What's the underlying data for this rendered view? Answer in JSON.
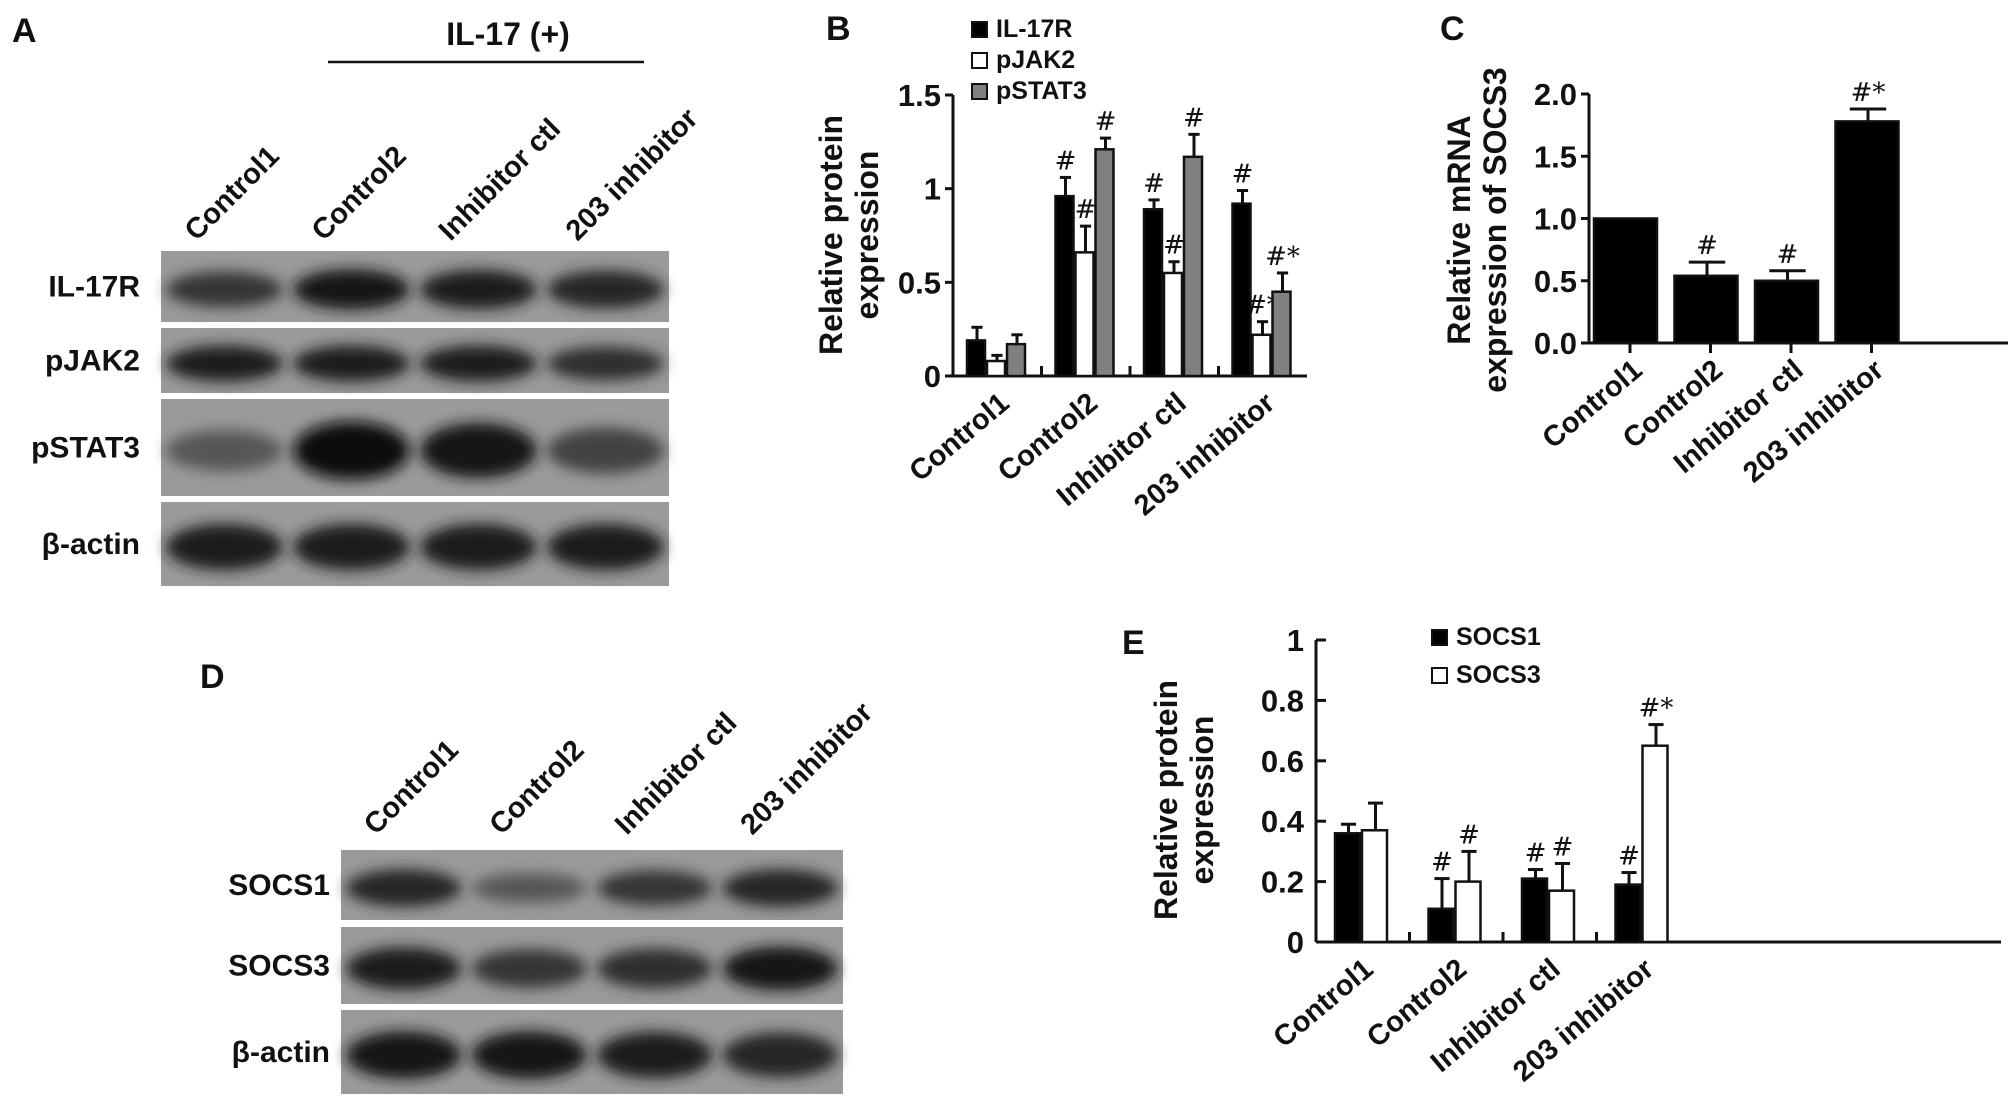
{
  "panels": {
    "a": "A",
    "b": "B",
    "c": "C",
    "d": "D",
    "e": "E"
  },
  "blot_a": {
    "treatment_label": "IL-17 (+)",
    "lanes": [
      "Control1",
      "Control2",
      "Inhibitor ctl",
      "203 inhibitor"
    ],
    "rows": [
      "IL-17R",
      "pJAK2",
      "pSTAT3",
      "β-actin"
    ]
  },
  "blot_d": {
    "lanes": [
      "Control1",
      "Control2",
      "Inhibitor ctl",
      "203 inhibitor"
    ],
    "rows": [
      "SOCS1",
      "SOCS3",
      "β-actin"
    ]
  },
  "chart_data": [
    {
      "id": "B",
      "type": "bar",
      "ylabel": [
        "Relative protein",
        "expression"
      ],
      "categories": [
        "Control1",
        "Control2",
        "Inhibitor ctl",
        "203 inhibitor"
      ],
      "ylim": [
        0,
        1.5
      ],
      "yticks": [
        "0",
        "0.5",
        "1",
        "1.5"
      ],
      "ytick_values": [
        0,
        0.5,
        1,
        1.5
      ],
      "legend_position": "top-left",
      "series": [
        {
          "name": "IL-17R",
          "color": "#000000",
          "values": [
            0.19,
            0.96,
            0.89,
            0.92
          ],
          "error_top": [
            0.26,
            1.06,
            0.94,
            0.99
          ],
          "annotations": [
            "",
            "#",
            "#",
            "#"
          ]
        },
        {
          "name": "pJAK2",
          "color": "#ffffff",
          "values": [
            0.08,
            0.66,
            0.55,
            0.22
          ],
          "error_top": [
            0.11,
            0.8,
            0.61,
            0.29
          ],
          "annotations": [
            "",
            "#",
            "#",
            "#*"
          ]
        },
        {
          "name": "pSTAT3",
          "color": "#808080",
          "values": [
            0.17,
            1.21,
            1.17,
            0.45
          ],
          "error_top": [
            0.22,
            1.27,
            1.29,
            0.55
          ],
          "annotations": [
            "",
            "#",
            "#",
            "#*"
          ]
        }
      ]
    },
    {
      "id": "C",
      "type": "bar",
      "ylabel": [
        "Relative mRNA",
        "expression of SOCS3"
      ],
      "categories": [
        "Control1",
        "Control2",
        "Inhibitor ctl",
        "203 inhibitor"
      ],
      "ylim": [
        0,
        2.0
      ],
      "yticks": [
        "0.0",
        "0.5",
        "1.0",
        "1.5",
        "2.0"
      ],
      "ytick_values": [
        0,
        0.5,
        1,
        1.5,
        2
      ],
      "series": [
        {
          "color": "#000000",
          "values": [
            1.0,
            0.54,
            0.5,
            1.78
          ],
          "error_top": [
            1.0,
            0.65,
            0.58,
            1.88
          ],
          "annotations": [
            "",
            "#",
            "#",
            "#*"
          ]
        }
      ]
    },
    {
      "id": "E",
      "type": "bar",
      "ylabel": [
        "Relative protein",
        "expression"
      ],
      "categories": [
        "Control1",
        "Control2",
        "Inhibitor ctl",
        "203 inhibitor"
      ],
      "ylim": [
        0,
        1
      ],
      "yticks": [
        "0",
        "0.2",
        "0.4",
        "0.6",
        "0.8",
        "1"
      ],
      "ytick_values": [
        0,
        0.2,
        0.4,
        0.6,
        0.8,
        1
      ],
      "legend_position": "top",
      "series": [
        {
          "name": "SOCS1",
          "color": "#000000",
          "values": [
            0.36,
            0.11,
            0.21,
            0.19
          ],
          "error_top": [
            0.39,
            0.21,
            0.24,
            0.23
          ],
          "annotations": [
            "",
            "#",
            "#",
            "#"
          ]
        },
        {
          "name": "SOCS3",
          "color": "#ffffff",
          "values": [
            0.37,
            0.2,
            0.17,
            0.65
          ],
          "error_top": [
            0.46,
            0.3,
            0.26,
            0.72
          ],
          "annotations": [
            "",
            "#",
            "#",
            "#*"
          ]
        }
      ]
    }
  ]
}
